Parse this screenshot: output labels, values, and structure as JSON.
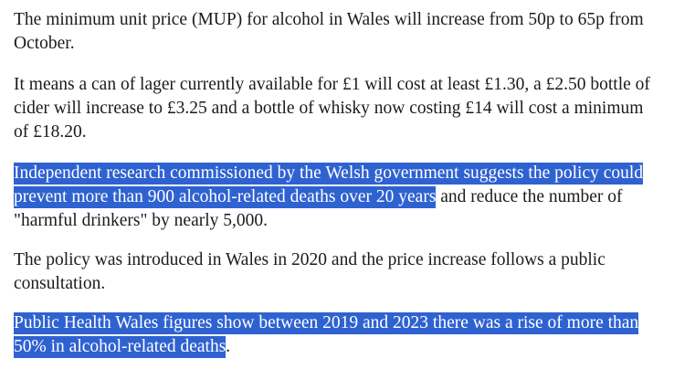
{
  "paragraphs": [
    {
      "lines": [
        [
          {
            "text": "The minimum unit price (MUP) for alcohol in Wales will increase from 50p to 65p from",
            "selected": false
          }
        ],
        [
          {
            "text": "October.",
            "selected": false
          }
        ]
      ]
    },
    {
      "lines": [
        [
          {
            "text": "It means a can of lager currently available for £1 will cost at least £1.30, a £2.50 bottle of",
            "selected": false
          }
        ],
        [
          {
            "text": "cider will increase to £3.25 and a bottle of whisky now costing £14 will cost a minimum",
            "selected": false
          }
        ],
        [
          {
            "text": "of £18.20.",
            "selected": false
          }
        ]
      ]
    },
    {
      "lines": [
        [
          {
            "text": "Independent research commissioned by the Welsh government suggests the policy could",
            "selected": true
          }
        ],
        [
          {
            "text": "prevent more than 900 alcohol-related deaths over 20 years",
            "selected": true
          },
          {
            "text": " and reduce the number of",
            "selected": false
          }
        ],
        [
          {
            "text": "\"harmful drinkers\" by nearly 5,000.",
            "selected": false
          }
        ]
      ]
    },
    {
      "lines": [
        [
          {
            "text": "The policy was introduced in Wales in 2020 and the price increase follows a public",
            "selected": false
          }
        ],
        [
          {
            "text": "consultation.",
            "selected": false
          }
        ]
      ]
    },
    {
      "lines": [
        [
          {
            "text": "Public Health Wales figures show between 2019 and 2023 there was a rise of more than",
            "selected": true
          }
        ],
        [
          {
            "text": "50% in alcohol-related deaths",
            "selected": true
          },
          {
            "text": ".",
            "selected": false
          }
        ]
      ]
    }
  ]
}
